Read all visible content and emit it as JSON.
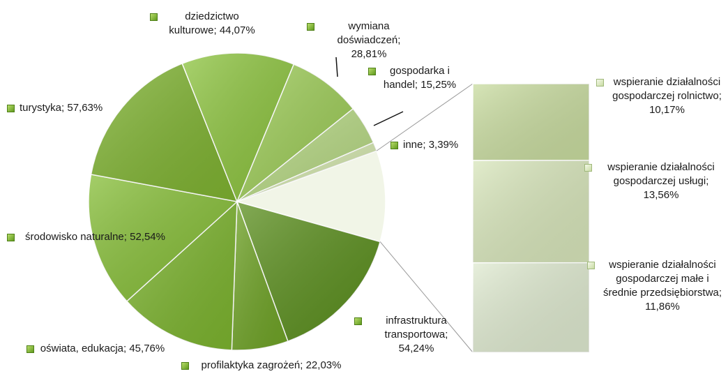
{
  "chart_data": {
    "type": "pie",
    "categories": [
      "infrastruktura transportowa;",
      "profilaktyka zagrożeń;",
      "oświata, edukacja;",
      "środowisko naturalne;",
      "turystyka;",
      "dziedzictwo kulturowe;",
      "wymiana doświadczeń;",
      "gospodarka i handel;",
      "inne;"
    ],
    "values": [
      54.24,
      22.03,
      45.76,
      52.54,
      57.63,
      44.07,
      28.81,
      15.25,
      3.39
    ],
    "value_labels": [
      "54,24%",
      "22,03%",
      "45,76%",
      "52,54%",
      "57,63%",
      "44,07%",
      "28,81%",
      "15,25%",
      "3,39%"
    ],
    "colors": [
      "#5b8f1e",
      "#6fa326",
      "#7cb42e",
      "#86be37",
      "#7fb331",
      "#8dc43f",
      "#9dcc57",
      "#b6d883",
      "#d3e6ad"
    ],
    "bar": {
      "categories": [
        "wspieranie działalności gospodarczej rolnictwo;",
        "wspieranie działalności gospodarczej usługi;",
        "wspieranie działalności gospodarczej małe i średnie przedsiębiorstwa;"
      ],
      "values": [
        10.17,
        13.56,
        11.86
      ],
      "value_labels": [
        "10,17%",
        "13,56%",
        "11,86%"
      ],
      "colors": [
        "#c9dca0",
        "#d8e6bb",
        "#dfead0"
      ]
    }
  }
}
